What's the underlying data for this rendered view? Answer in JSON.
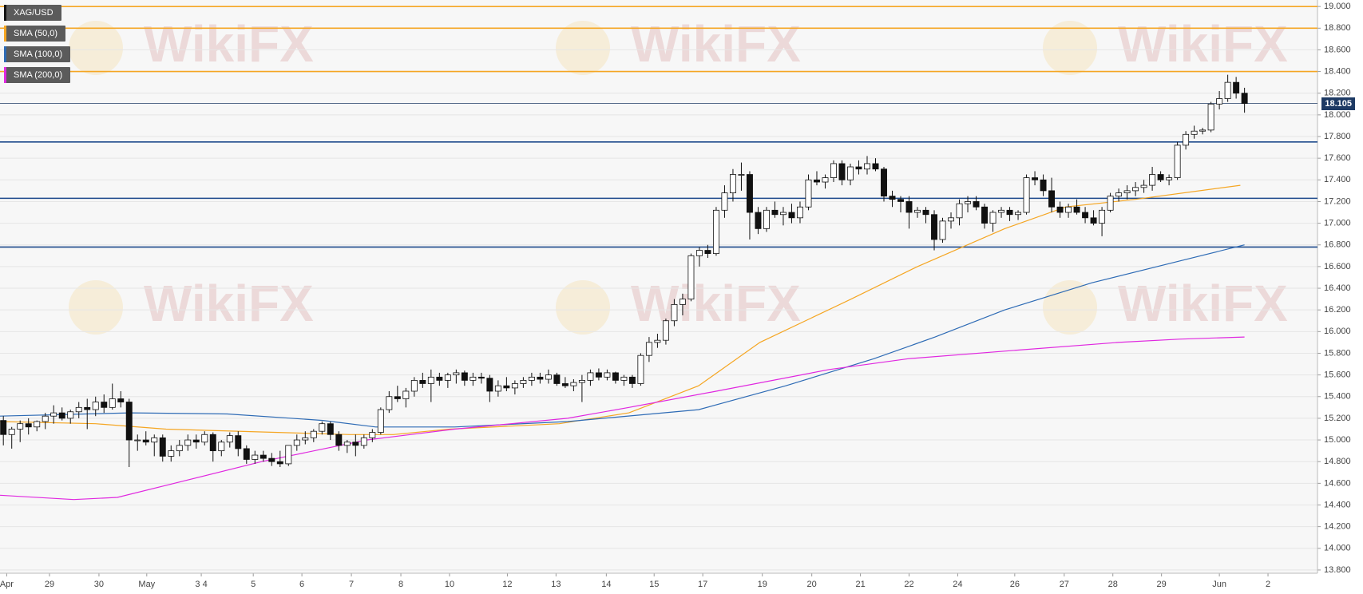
{
  "chart_data": {
    "type": "candlestick",
    "title": "XAG/USD",
    "watermark": "WikiFX",
    "xlim": [
      -0.4,
      156.7
    ],
    "ylim": [
      13.77,
      19.06
    ],
    "grid": true,
    "yticks": [
      {
        "value": 19.0,
        "label": "19.000"
      },
      {
        "value": 18.8,
        "label": "18.800"
      },
      {
        "value": 18.6,
        "label": "18.600"
      },
      {
        "value": 18.4,
        "label": "18.400"
      },
      {
        "value": 18.2,
        "label": "18.200"
      },
      {
        "value": 18.0,
        "label": "18.000"
      },
      {
        "value": 17.8,
        "label": "17.800"
      },
      {
        "value": 17.6,
        "label": "17.600"
      },
      {
        "value": 17.4,
        "label": "17.400"
      },
      {
        "value": 17.2,
        "label": "17.200"
      },
      {
        "value": 17.0,
        "label": "17.000"
      },
      {
        "value": 16.8,
        "label": "16.800"
      },
      {
        "value": 16.6,
        "label": "16.600"
      },
      {
        "value": 16.4,
        "label": "16.400"
      },
      {
        "value": 16.2,
        "label": "16.200"
      },
      {
        "value": 16.0,
        "label": "16.000"
      },
      {
        "value": 15.8,
        "label": "15.800"
      },
      {
        "value": 15.6,
        "label": "15.600"
      },
      {
        "value": 15.4,
        "label": "15.400"
      },
      {
        "value": 15.2,
        "label": "15.200"
      },
      {
        "value": 15.0,
        "label": "15.000"
      },
      {
        "value": 14.8,
        "label": "14.800"
      },
      {
        "value": 14.6,
        "label": "14.600"
      },
      {
        "value": 14.4,
        "label": "14.400"
      },
      {
        "value": 14.2,
        "label": "14.200"
      },
      {
        "value": 14.0,
        "label": "14.000"
      },
      {
        "value": 13.8,
        "label": "13.800"
      }
    ],
    "xticks": [
      {
        "value": 0.4,
        "label": "Apr"
      },
      {
        "value": 5.5,
        "label": "29"
      },
      {
        "value": 11.4,
        "label": "30"
      },
      {
        "value": 17.1,
        "label": "May"
      },
      {
        "value": 23.6,
        "label": "3 4"
      },
      {
        "value": 29.8,
        "label": "5"
      },
      {
        "value": 35.6,
        "label": "6"
      },
      {
        "value": 41.5,
        "label": "7"
      },
      {
        "value": 47.4,
        "label": "8"
      },
      {
        "value": 53.2,
        "label": "10"
      },
      {
        "value": 60.1,
        "label": "12"
      },
      {
        "value": 65.9,
        "label": "13"
      },
      {
        "value": 71.9,
        "label": "14"
      },
      {
        "value": 77.6,
        "label": "15"
      },
      {
        "value": 83.4,
        "label": "17"
      },
      {
        "value": 90.5,
        "label": "19"
      },
      {
        "value": 96.4,
        "label": "20"
      },
      {
        "value": 102.2,
        "label": "21"
      },
      {
        "value": 108.0,
        "label": "22"
      },
      {
        "value": 113.8,
        "label": "24"
      },
      {
        "value": 120.6,
        "label": "26"
      },
      {
        "value": 126.5,
        "label": "27"
      },
      {
        "value": 132.3,
        "label": "28"
      },
      {
        "value": 138.1,
        "label": "29"
      },
      {
        "value": 145.0,
        "label": "Jun"
      },
      {
        "value": 150.8,
        "label": "2"
      }
    ],
    "candles": [
      [
        15.18,
        15.22,
        14.95,
        15.05
      ],
      [
        15.05,
        15.12,
        14.92,
        15.1
      ],
      [
        15.1,
        15.18,
        14.98,
        15.15
      ],
      [
        15.15,
        15.2,
        15.05,
        15.12
      ],
      [
        15.12,
        15.18,
        15.08,
        15.17
      ],
      [
        15.17,
        15.25,
        15.1,
        15.22
      ],
      [
        15.22,
        15.32,
        15.15,
        15.25
      ],
      [
        15.25,
        15.3,
        15.18,
        15.2
      ],
      [
        15.2,
        15.28,
        15.15,
        15.26
      ],
      [
        15.26,
        15.35,
        15.2,
        15.3
      ],
      [
        15.3,
        15.38,
        15.1,
        15.28
      ],
      [
        15.28,
        15.4,
        15.22,
        15.35
      ],
      [
        15.35,
        15.42,
        15.25,
        15.3
      ],
      [
        15.3,
        15.52,
        15.28,
        15.38
      ],
      [
        15.38,
        15.45,
        15.3,
        15.35
      ],
      [
        15.35,
        15.38,
        14.75,
        15.0
      ],
      [
        15.0,
        15.05,
        14.9,
        15.0
      ],
      [
        15.0,
        15.08,
        14.95,
        14.98
      ],
      [
        14.98,
        15.05,
        14.85,
        15.02
      ],
      [
        15.02,
        15.05,
        14.8,
        14.85
      ],
      [
        14.85,
        14.95,
        14.8,
        14.9
      ],
      [
        14.9,
        15.0,
        14.85,
        14.95
      ],
      [
        14.95,
        15.05,
        14.9,
        15.0
      ],
      [
        15.0,
        15.05,
        14.92,
        14.98
      ],
      [
        14.98,
        15.08,
        14.95,
        15.05
      ],
      [
        15.05,
        15.07,
        14.8,
        14.9
      ],
      [
        14.9,
        15.0,
        14.85,
        14.98
      ],
      [
        14.98,
        15.07,
        14.93,
        15.04
      ],
      [
        15.04,
        15.08,
        14.85,
        14.92
      ],
      [
        14.92,
        14.95,
        14.78,
        14.82
      ],
      [
        14.82,
        14.9,
        14.78,
        14.86
      ],
      [
        14.86,
        14.9,
        14.8,
        14.83
      ],
      [
        14.83,
        14.88,
        14.76,
        14.8
      ],
      [
        14.8,
        14.9,
        14.75,
        14.78
      ],
      [
        14.78,
        14.95,
        14.76,
        14.95
      ],
      [
        14.95,
        15.05,
        14.9,
        15.0
      ],
      [
        15.0,
        15.08,
        14.96,
        15.02
      ],
      [
        15.02,
        15.1,
        14.98,
        15.08
      ],
      [
        15.08,
        15.17,
        15.05,
        15.15
      ],
      [
        15.15,
        15.17,
        15.0,
        15.05
      ],
      [
        15.05,
        15.08,
        14.9,
        14.95
      ],
      [
        14.95,
        15.0,
        14.88,
        14.98
      ],
      [
        14.98,
        15.05,
        14.85,
        14.95
      ],
      [
        14.95,
        15.05,
        14.92,
        15.02
      ],
      [
        15.02,
        15.1,
        14.98,
        15.07
      ],
      [
        15.07,
        15.3,
        15.05,
        15.28
      ],
      [
        15.28,
        15.45,
        15.25,
        15.4
      ],
      [
        15.4,
        15.5,
        15.35,
        15.38
      ],
      [
        15.38,
        15.48,
        15.3,
        15.45
      ],
      [
        15.45,
        15.58,
        15.4,
        15.55
      ],
      [
        15.55,
        15.62,
        15.48,
        15.52
      ],
      [
        15.52,
        15.65,
        15.35,
        15.58
      ],
      [
        15.58,
        15.62,
        15.5,
        15.55
      ],
      [
        15.55,
        15.62,
        15.48,
        15.6
      ],
      [
        15.6,
        15.65,
        15.52,
        15.62
      ],
      [
        15.62,
        15.64,
        15.5,
        15.55
      ],
      [
        15.55,
        15.62,
        15.5,
        15.58
      ],
      [
        15.58,
        15.62,
        15.52,
        15.57
      ],
      [
        15.57,
        15.6,
        15.35,
        15.45
      ],
      [
        15.45,
        15.55,
        15.4,
        15.5
      ],
      [
        15.5,
        15.58,
        15.45,
        15.48
      ],
      [
        15.48,
        15.55,
        15.42,
        15.52
      ],
      [
        15.52,
        15.58,
        15.48,
        15.55
      ],
      [
        15.55,
        15.62,
        15.5,
        15.58
      ],
      [
        15.58,
        15.62,
        15.52,
        15.56
      ],
      [
        15.56,
        15.65,
        15.52,
        15.6
      ],
      [
        15.6,
        15.62,
        15.5,
        15.52
      ],
      [
        15.52,
        15.58,
        15.48,
        15.5
      ],
      [
        15.5,
        15.56,
        15.45,
        15.53
      ],
      [
        15.53,
        15.6,
        15.35,
        15.55
      ],
      [
        15.55,
        15.65,
        15.5,
        15.62
      ],
      [
        15.62,
        15.66,
        15.55,
        15.58
      ],
      [
        15.58,
        15.65,
        15.55,
        15.62
      ],
      [
        15.62,
        15.63,
        15.52,
        15.55
      ],
      [
        15.55,
        15.6,
        15.5,
        15.58
      ],
      [
        15.58,
        15.6,
        15.48,
        15.52
      ],
      [
        15.52,
        15.8,
        15.5,
        15.78
      ],
      [
        15.78,
        15.95,
        15.72,
        15.9
      ],
      [
        15.9,
        15.98,
        15.85,
        15.92
      ],
      [
        15.92,
        16.12,
        15.88,
        16.1
      ],
      [
        16.1,
        16.3,
        16.05,
        16.25
      ],
      [
        16.25,
        16.35,
        16.15,
        16.3
      ],
      [
        16.3,
        16.72,
        16.28,
        16.7
      ],
      [
        16.7,
        16.78,
        16.6,
        16.75
      ],
      [
        16.75,
        16.8,
        16.68,
        16.72
      ],
      [
        16.72,
        17.15,
        16.7,
        17.12
      ],
      [
        17.12,
        17.35,
        17.05,
        17.28
      ],
      [
        17.28,
        17.5,
        17.2,
        17.45
      ],
      [
        17.45,
        17.56,
        17.3,
        17.45
      ],
      [
        17.45,
        17.48,
        16.85,
        17.1
      ],
      [
        17.1,
        17.15,
        16.9,
        16.95
      ],
      [
        16.95,
        17.15,
        16.92,
        17.12
      ],
      [
        17.12,
        17.2,
        17.05,
        17.08
      ],
      [
        17.08,
        17.15,
        16.98,
        17.1
      ],
      [
        17.1,
        17.18,
        17.0,
        17.05
      ],
      [
        17.05,
        17.2,
        17.0,
        17.15
      ],
      [
        17.15,
        17.45,
        17.12,
        17.4
      ],
      [
        17.4,
        17.48,
        17.35,
        17.38
      ],
      [
        17.38,
        17.45,
        17.32,
        17.42
      ],
      [
        17.42,
        17.58,
        17.38,
        17.55
      ],
      [
        17.55,
        17.58,
        17.35,
        17.4
      ],
      [
        17.4,
        17.55,
        17.35,
        17.52
      ],
      [
        17.52,
        17.58,
        17.45,
        17.5
      ],
      [
        17.5,
        17.62,
        17.45,
        17.55
      ],
      [
        17.55,
        17.6,
        17.48,
        17.5
      ],
      [
        17.5,
        17.52,
        17.2,
        17.25
      ],
      [
        17.25,
        17.3,
        17.15,
        17.22
      ],
      [
        17.22,
        17.25,
        17.1,
        17.2
      ],
      [
        17.2,
        17.25,
        16.95,
        17.1
      ],
      [
        17.1,
        17.15,
        17.05,
        17.12
      ],
      [
        17.12,
        17.15,
        17.0,
        17.08
      ],
      [
        17.08,
        17.12,
        16.75,
        16.85
      ],
      [
        16.85,
        17.05,
        16.82,
        17.02
      ],
      [
        17.02,
        17.1,
        16.95,
        17.05
      ],
      [
        17.05,
        17.22,
        16.98,
        17.18
      ],
      [
        17.18,
        17.25,
        17.1,
        17.2
      ],
      [
        17.2,
        17.25,
        17.12,
        17.15
      ],
      [
        17.15,
        17.18,
        16.95,
        17.0
      ],
      [
        17.0,
        17.12,
        16.92,
        17.1
      ],
      [
        17.1,
        17.15,
        17.05,
        17.12
      ],
      [
        17.12,
        17.15,
        17.02,
        17.08
      ],
      [
        17.08,
        17.12,
        17.03,
        17.1
      ],
      [
        17.1,
        17.45,
        17.08,
        17.42
      ],
      [
        17.42,
        17.48,
        17.35,
        17.4
      ],
      [
        17.4,
        17.45,
        17.25,
        17.3
      ],
      [
        17.3,
        17.42,
        17.1,
        17.15
      ],
      [
        17.15,
        17.2,
        17.05,
        17.1
      ],
      [
        17.1,
        17.18,
        17.05,
        17.15
      ],
      [
        17.15,
        17.22,
        17.08,
        17.1
      ],
      [
        17.1,
        17.15,
        17.0,
        17.05
      ],
      [
        17.05,
        17.12,
        16.98,
        17.0
      ],
      [
        17.0,
        17.15,
        16.88,
        17.12
      ],
      [
        17.12,
        17.28,
        17.1,
        17.25
      ],
      [
        17.25,
        17.32,
        17.2,
        17.28
      ],
      [
        17.28,
        17.35,
        17.22,
        17.3
      ],
      [
        17.3,
        17.38,
        17.25,
        17.33
      ],
      [
        17.33,
        17.4,
        17.28,
        17.35
      ],
      [
        17.35,
        17.52,
        17.3,
        17.45
      ],
      [
        17.45,
        17.48,
        17.38,
        17.4
      ],
      [
        17.4,
        17.45,
        17.35,
        17.42
      ],
      [
        17.42,
        17.75,
        17.4,
        17.72
      ],
      [
        17.72,
        17.85,
        17.68,
        17.82
      ],
      [
        17.82,
        17.9,
        17.78,
        17.85
      ],
      [
        17.85,
        17.88,
        17.82,
        17.86
      ],
      [
        17.86,
        18.12,
        17.84,
        18.1
      ],
      [
        18.1,
        18.22,
        18.05,
        18.15
      ],
      [
        18.15,
        18.37,
        18.12,
        18.3
      ],
      [
        18.3,
        18.35,
        18.15,
        18.2
      ],
      [
        18.2,
        18.25,
        18.02,
        18.105
      ]
    ],
    "series": [
      {
        "name": "SMA (50,0)",
        "color": "#f5a623",
        "x": [
          -0.4,
          11,
          19.4,
          41.3,
          46.5,
          53.2,
          66.3,
          74.6,
          82.9,
          90.2,
          101.1,
          109,
          119.4,
          126.7,
          135,
          147.5
        ],
        "values": [
          15.17,
          15.15,
          15.1,
          15.05,
          15.05,
          15.1,
          15.15,
          15.25,
          15.5,
          15.9,
          16.3,
          16.6,
          16.95,
          17.15,
          17.22,
          17.35
        ]
      },
      {
        "name": "SMA (100,0)",
        "color": "#2e6bb5",
        "x": [
          -0.4,
          15.2,
          26.7,
          38.1,
          44.4,
          53.8,
          67.3,
          82.9,
          93.3,
          103.8,
          111.1,
          119.4,
          129.8,
          140.2,
          148
        ],
        "values": [
          15.22,
          15.25,
          15.24,
          15.18,
          15.12,
          15.12,
          15.17,
          15.28,
          15.5,
          15.75,
          15.95,
          16.2,
          16.45,
          16.65,
          16.8
        ]
      },
      {
        "name": "SMA (200,0)",
        "color": "#e028e0",
        "x": [
          -0.4,
          8.4,
          13.6,
          20.4,
          30.8,
          43.3,
          53.8,
          67.3,
          74.6,
          85,
          98.5,
          107.9,
          119.4,
          132.9,
          140.2,
          148
        ],
        "values": [
          14.49,
          14.45,
          14.47,
          14.6,
          14.8,
          15.0,
          15.1,
          15.2,
          15.3,
          15.45,
          15.65,
          15.75,
          15.82,
          15.9,
          15.93,
          15.95
        ]
      }
    ],
    "levels": [
      {
        "value": 19.0,
        "color": "#f5a623"
      },
      {
        "value": 18.8,
        "color": "#f5a623"
      },
      {
        "value": 18.4,
        "color": "#f5a623"
      },
      {
        "value": 17.75,
        "color": "#1e4a8c"
      },
      {
        "value": 17.23,
        "color": "#1e4a8c"
      },
      {
        "value": 16.78,
        "color": "#1e4a8c"
      }
    ],
    "last_price": 18.105
  }
}
